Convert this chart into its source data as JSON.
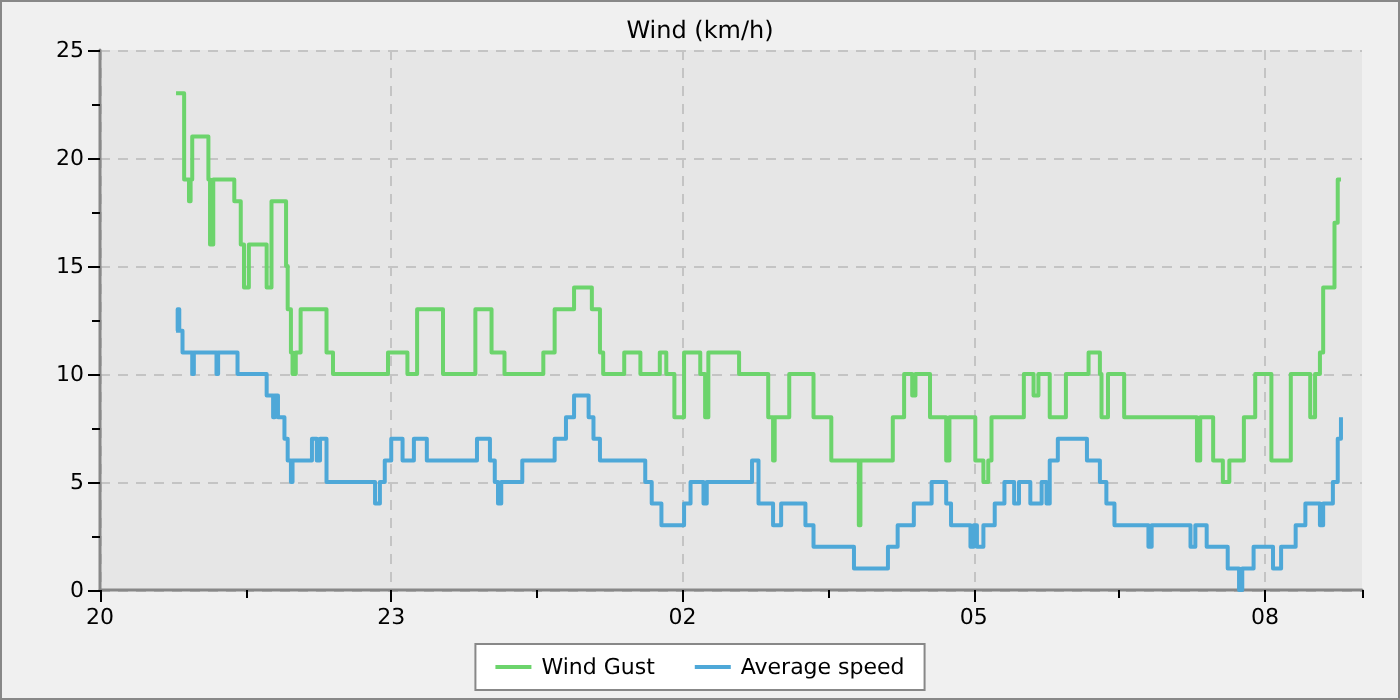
{
  "chart_data": {
    "type": "step",
    "title": "Wind (km/h)",
    "xlim": [
      "--01-01T20:00",
      "--01-02T09:00"
    ],
    "ylim": [
      0,
      25
    ],
    "xticks": [
      {
        "value": "--01-01T20:00",
        "label": "20"
      },
      {
        "value": "--01-01T21:30",
        "label": null
      },
      {
        "value": "--01-01T23:00",
        "label": "23"
      },
      {
        "value": "--01-02T00:30",
        "label": null
      },
      {
        "value": "--01-02T02:00",
        "label": "02"
      },
      {
        "value": "--01-02T03:30",
        "label": null
      },
      {
        "value": "--01-02T05:00",
        "label": "05"
      },
      {
        "value": "--01-02T06:30",
        "label": null
      },
      {
        "value": "--01-02T08:00",
        "label": "08"
      },
      {
        "value": "--01-02T09:00",
        "label": null
      }
    ],
    "yticks": [
      0,
      {
        "value": 2.5,
        "label": null
      },
      5,
      {
        "value": 7.5,
        "label": null
      },
      10,
      {
        "value": 12.5,
        "label": null
      },
      15,
      {
        "value": 17.5,
        "label": null
      },
      20,
      {
        "value": 22.5,
        "label": null
      },
      25
    ],
    "grid": true,
    "legend": "bottom",
    "marker": "none",
    "line_style": "solid",
    "series": [
      {
        "name": "Wind Gust",
        "color": "#6cd46c",
        "x": [
          "--01-01T20:47",
          "--01-01T20:52",
          "--01-01T20:55",
          "--01-01T20:56",
          "--01-01T20:57",
          "--01-01T21:07",
          "--01-01T21:08",
          "--01-01T21:10",
          "--01-01T21:23",
          "--01-01T21:27",
          "--01-01T21:29",
          "--01-01T21:32",
          "--01-01T21:43",
          "--01-01T21:46",
          "--01-01T21:55",
          "--01-01T21:56",
          "--01-01T21:58",
          "--01-01T21:59",
          "--01-01T22:01",
          "--01-01T22:04",
          "--01-01T22:20",
          "--01-01T22:24",
          "--01-01T22:58",
          "--01-01T23:10",
          "--01-01T23:16",
          "--01-01T23:32",
          "--01-01T23:52",
          "--01-02T00:02",
          "--01-02T00:10",
          "--01-02T00:34",
          "--01-02T00:41",
          "--01-02T00:53",
          "--01-02T01:04",
          "--01-02T01:09",
          "--01-02T01:11",
          "--01-02T01:24",
          "--01-02T01:34",
          "--01-02T01:46",
          "--01-02T01:50",
          "--01-02T01:55",
          "--01-02T02:01",
          "--01-02T02:11",
          "--01-02T02:14",
          "--01-02T02:16",
          "--01-02T02:35",
          "--01-02T02:53",
          "--01-02T02:56",
          "--01-02T02:57",
          "--01-02T03:06",
          "--01-02T03:21",
          "--01-02T03:32",
          "--01-02T03:49",
          "--01-02T03:50",
          "--01-02T04:10",
          "--01-02T04:17",
          "--01-02T04:22",
          "--01-02T04:24",
          "--01-02T04:33",
          "--01-02T04:43",
          "--01-02T04:45",
          "--01-02T05:01",
          "--01-02T05:06",
          "--01-02T05:09",
          "--01-02T05:11",
          "--01-02T05:31",
          "--01-02T05:37",
          "--01-02T05:40",
          "--01-02T05:47",
          "--01-02T05:57",
          "--01-02T06:11",
          "--01-02T06:18",
          "--01-02T06:19",
          "--01-02T06:23",
          "--01-02T06:33",
          "--01-02T07:18",
          "--01-02T07:20",
          "--01-02T07:28",
          "--01-02T07:34",
          "--01-02T07:38",
          "--01-02T07:47",
          "--01-02T07:54",
          "--01-02T08:04",
          "--01-02T08:16",
          "--01-02T08:28",
          "--01-02T08:31",
          "--01-02T08:34",
          "--01-02T08:36",
          "--01-02T08:43",
          "--01-02T08:45",
          "--01-02T08:47"
        ],
        "values": [
          23,
          19,
          18,
          19,
          21,
          19,
          16,
          19,
          18,
          16,
          14,
          16,
          14,
          18,
          15,
          13,
          11,
          10,
          11,
          13,
          11,
          10,
          11,
          10,
          13,
          10,
          13,
          11,
          10,
          11,
          13,
          14,
          13,
          11,
          10,
          11,
          10,
          11,
          10,
          8,
          11,
          10,
          8,
          11,
          10,
          8,
          6,
          8,
          10,
          8,
          6,
          3,
          6,
          8,
          10,
          9,
          10,
          8,
          6,
          8,
          6,
          5,
          6,
          8,
          10,
          9,
          10,
          8,
          10,
          11,
          10,
          8,
          10,
          8,
          6,
          8,
          6,
          5,
          6,
          8,
          10,
          6,
          10,
          8,
          10,
          11,
          14,
          17,
          19,
          19
        ]
      },
      {
        "name": "Average speed",
        "color": "#4ea8d8",
        "x": [
          "--01-01T20:47",
          "--01-01T20:48",
          "--01-01T20:49",
          "--01-01T20:51",
          "--01-01T20:57",
          "--01-01T20:58",
          "--01-01T21:12",
          "--01-01T21:13",
          "--01-01T21:25",
          "--01-01T21:43",
          "--01-01T21:47",
          "--01-01T21:48",
          "--01-01T21:50",
          "--01-01T21:54",
          "--01-01T21:56",
          "--01-01T21:58",
          "--01-01T21:59",
          "--01-01T22:11",
          "--01-01T22:14",
          "--01-01T22:16",
          "--01-01T22:20",
          "--01-01T22:50",
          "--01-01T22:53",
          "--01-01T22:56",
          "--01-01T23:00",
          "--01-01T23:07",
          "--01-01T23:14",
          "--01-01T23:22",
          "--01-01T23:53",
          "--01-02T00:01",
          "--01-02T00:04",
          "--01-02T00:06",
          "--01-02T00:08",
          "--01-02T00:21",
          "--01-02T00:41",
          "--01-02T00:48",
          "--01-02T00:53",
          "--01-02T01:02",
          "--01-02T01:05",
          "--01-02T01:09",
          "--01-02T01:37",
          "--01-02T01:41",
          "--01-02T01:47",
          "--01-02T02:01",
          "--01-02T02:05",
          "--01-02T02:13",
          "--01-02T02:15",
          "--01-02T02:43",
          "--01-02T02:47",
          "--01-02T02:56",
          "--01-02T03:01",
          "--01-02T03:16",
          "--01-02T03:21",
          "--01-02T03:46",
          "--01-02T04:07",
          "--01-02T04:13",
          "--01-02T04:23",
          "--01-02T04:34",
          "--01-02T04:43",
          "--01-02T04:46",
          "--01-02T04:58",
          "--01-02T05:00",
          "--01-02T05:02",
          "--01-02T05:06",
          "--01-02T05:13",
          "--01-02T05:19",
          "--01-02T05:25",
          "--01-02T05:28",
          "--01-02T05:35",
          "--01-02T05:42",
          "--01-02T05:45",
          "--01-02T05:47",
          "--01-02T05:52",
          "--01-02T06:10",
          "--01-02T06:18",
          "--01-02T06:22",
          "--01-02T06:27",
          "--01-02T06:48",
          "--01-02T06:50",
          "--01-02T07:14",
          "--01-02T07:17",
          "--01-02T07:24",
          "--01-02T07:37",
          "--01-02T07:44",
          "--01-02T07:46",
          "--01-02T07:53",
          "--01-02T08:05",
          "--01-02T08:10",
          "--01-02T08:19",
          "--01-02T08:25",
          "--01-02T08:34",
          "--01-02T08:36",
          "--01-02T08:42",
          "--01-02T08:45",
          "--01-02T08:47"
        ],
        "values": [
          12,
          13,
          12,
          11,
          10,
          11,
          10,
          11,
          10,
          9,
          8,
          9,
          8,
          7,
          6,
          5,
          6,
          7,
          6,
          7,
          5,
          4,
          5,
          6,
          7,
          6,
          7,
          6,
          7,
          6,
          5,
          4,
          5,
          6,
          7,
          8,
          9,
          8,
          7,
          6,
          5,
          4,
          3,
          4,
          5,
          4,
          5,
          6,
          4,
          3,
          4,
          3,
          2,
          1,
          2,
          3,
          4,
          5,
          4,
          3,
          2,
          3,
          2,
          3,
          4,
          5,
          4,
          5,
          4,
          5,
          4,
          6,
          7,
          6,
          5,
          4,
          3,
          2,
          3,
          2,
          3,
          2,
          1,
          0,
          1,
          2,
          1,
          2,
          3,
          4,
          3,
          4,
          5,
          7,
          8
        ]
      }
    ]
  }
}
